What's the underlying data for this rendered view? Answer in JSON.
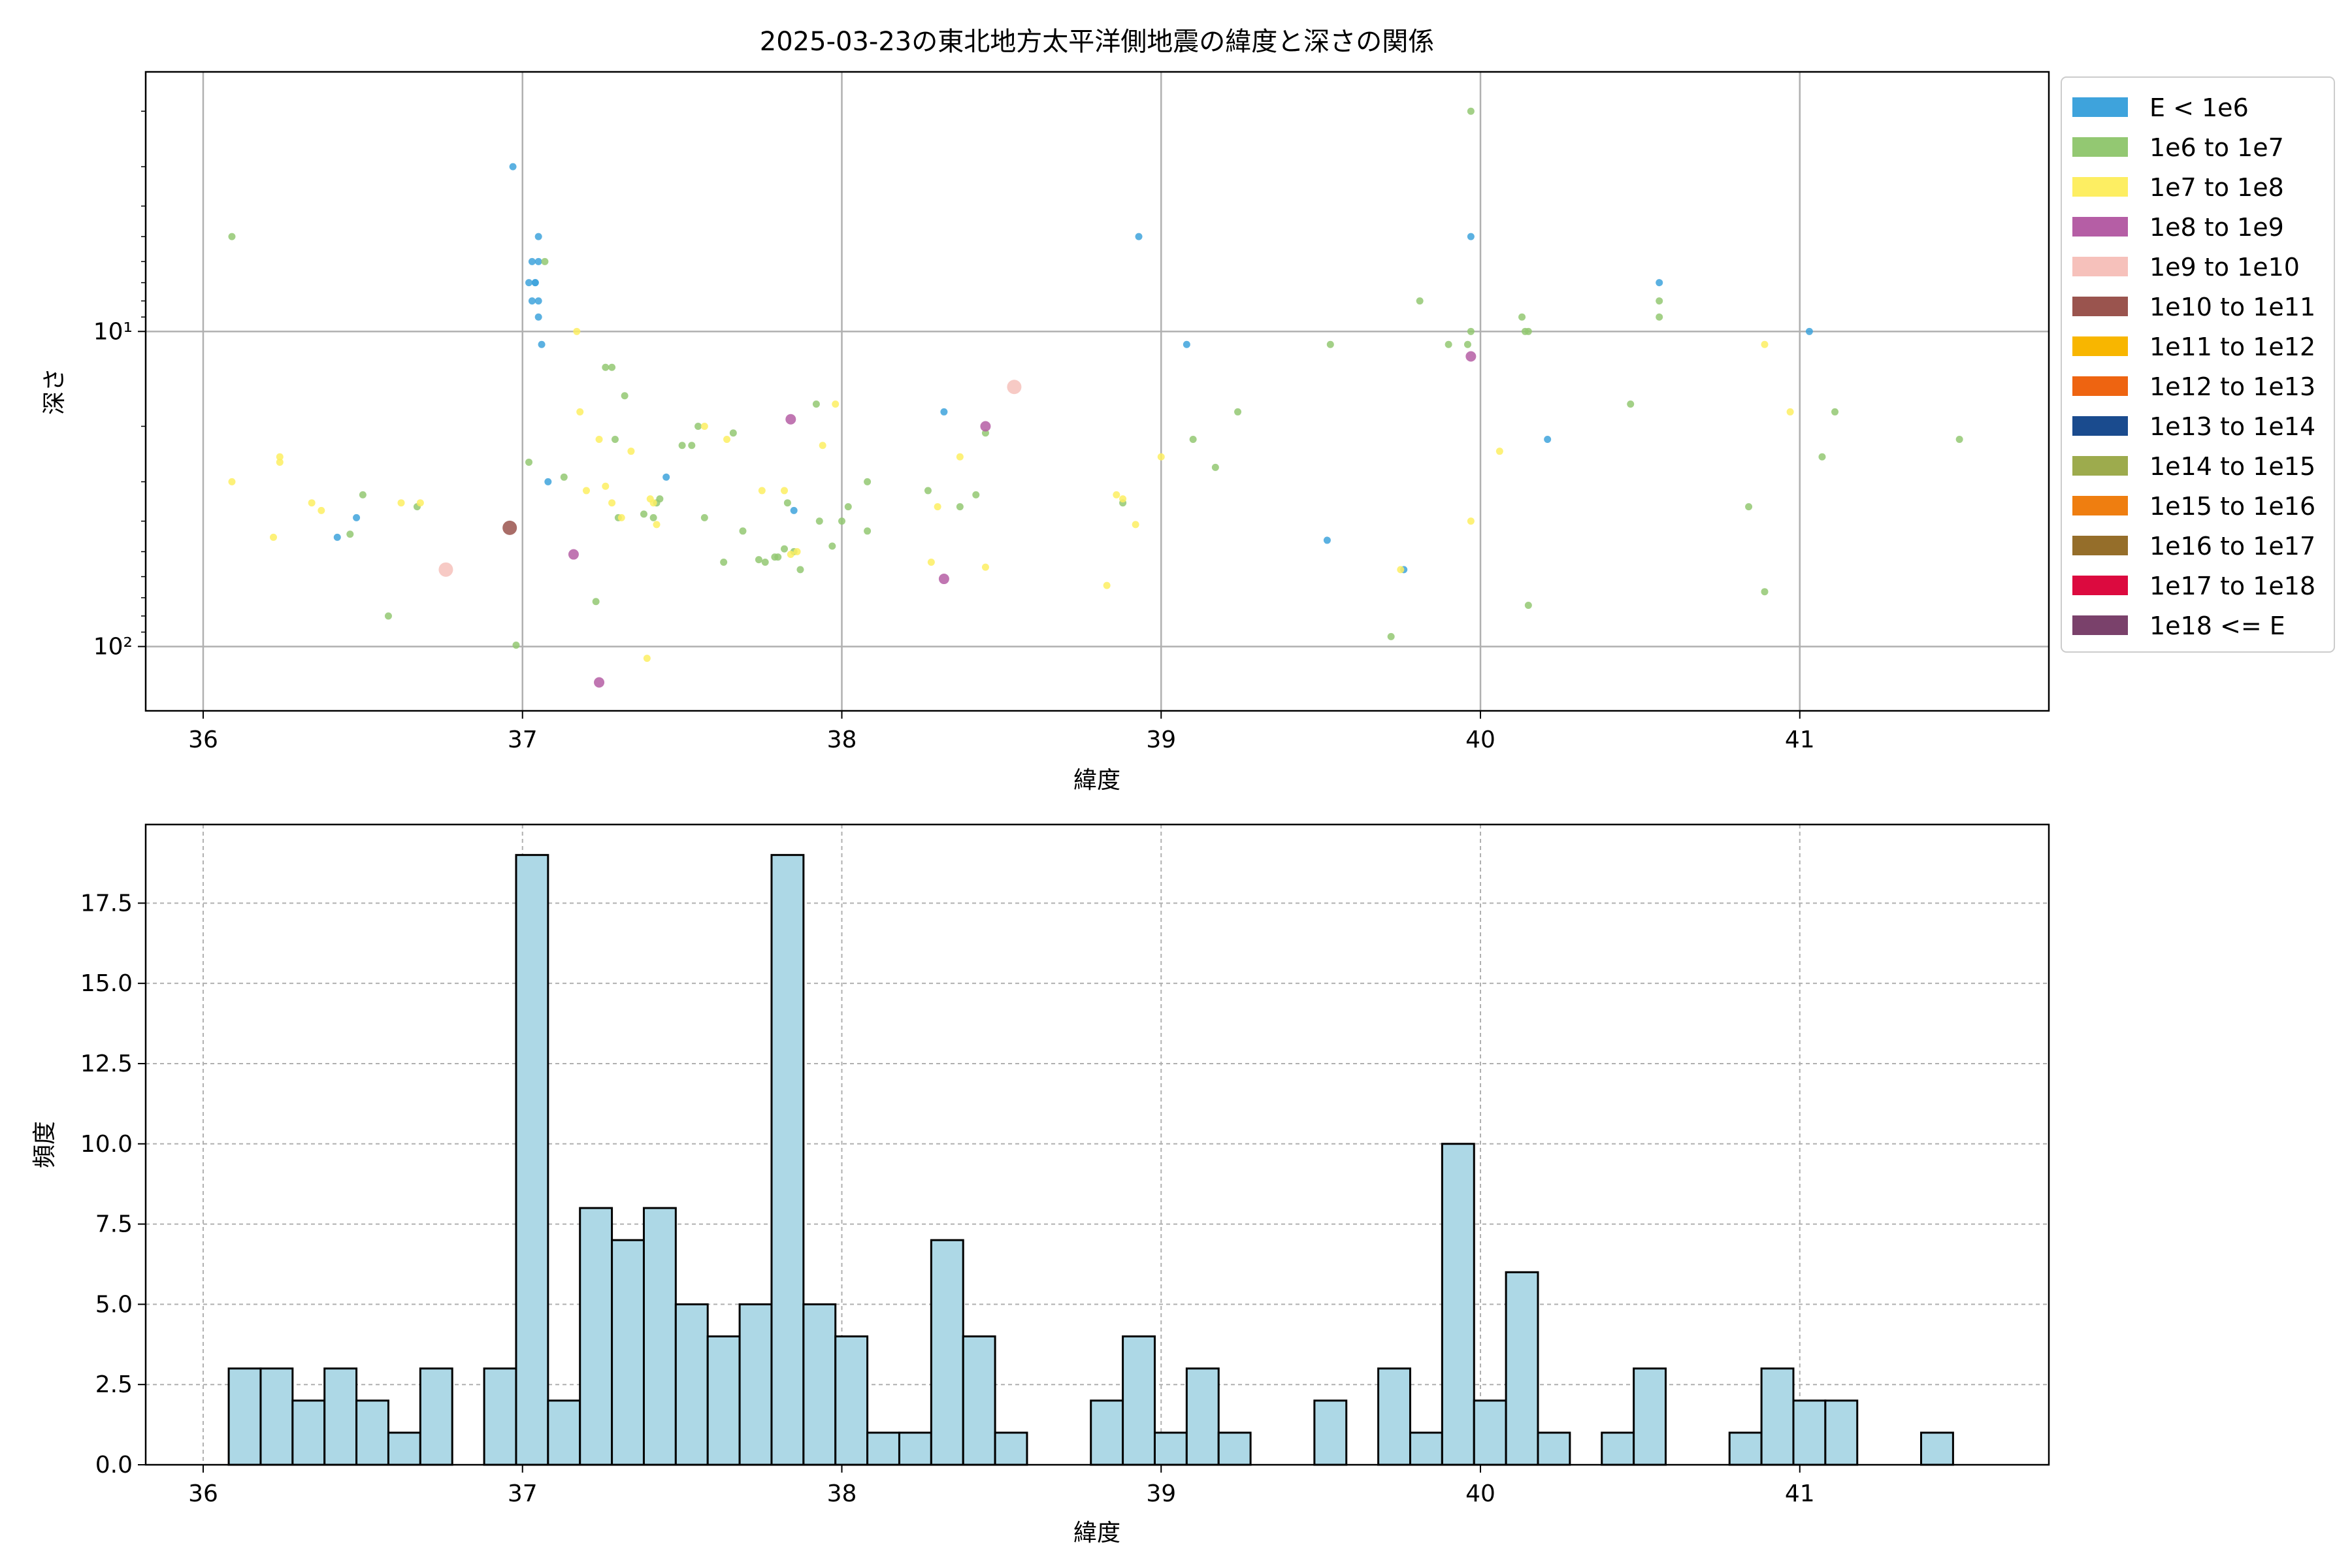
{
  "chart_data": [
    {
      "type": "scatter",
      "title": "2025-03-23の東北地方太平洋側地震の緯度と深さの関係",
      "xlabel": "緯度",
      "ylabel": "深さ",
      "xlim": [
        35.82,
        41.78
      ],
      "ylim": [
        160,
        1.5
      ],
      "yscale": "log",
      "y_inverted": true,
      "grid": true,
      "legend_placement": "outside right",
      "x_ticks": [
        36,
        37,
        38,
        39,
        40,
        41
      ],
      "x_tick_labels": [
        "36",
        "37",
        "38",
        "39",
        "40",
        "41"
      ],
      "y_ticks": [
        10,
        100
      ],
      "y_tick_labels": [
        "10¹",
        "10²"
      ],
      "legend": [
        {
          "label": "E < 1e6",
          "color": "#3ea3dc"
        },
        {
          "label": "1e6 to 1e7",
          "color": "#93c872"
        },
        {
          "label": "1e7 to 1e8",
          "color": "#fdee62"
        },
        {
          "label": "1e8 to 1e9",
          "color": "#b55ea5"
        },
        {
          "label": "1e9 to 1e10",
          "color": "#f6c1bb"
        },
        {
          "label": "1e10 to 1e11",
          "color": "#9a544e"
        },
        {
          "label": "1e11 to 1e12",
          "color": "#f8b600"
        },
        {
          "label": "1e12 to 1e13",
          "color": "#ee6411"
        },
        {
          "label": "1e13 to 1e14",
          "color": "#1a4b8e"
        },
        {
          "label": "1e14 to 1e15",
          "color": "#9dab4d"
        },
        {
          "label": "1e15 to 1e16",
          "color": "#ef7e10"
        },
        {
          "label": "1e16 to 1e17",
          "color": "#956e2a"
        },
        {
          "label": "1e17 to 1e18",
          "color": "#dc0a3f"
        },
        {
          "label": "1e18 <= E",
          "color": "#7a416b"
        }
      ],
      "series": [
        {
          "name": "E < 1e6",
          "color": "#3ea3dc",
          "points": [
            [
              36.97,
              3
            ],
            [
              37.05,
              5
            ],
            [
              37.03,
              6
            ],
            [
              37.05,
              6
            ],
            [
              37.02,
              7
            ],
            [
              37.04,
              7
            ],
            [
              37.04,
              7
            ],
            [
              37.03,
              8
            ],
            [
              37.05,
              8
            ],
            [
              37.05,
              9
            ],
            [
              37.06,
              11
            ],
            [
              37.08,
              30
            ],
            [
              37.45,
              29
            ],
            [
              37.85,
              37
            ],
            [
              38.32,
              18
            ],
            [
              38.93,
              5
            ],
            [
              39.08,
              11
            ],
            [
              39.52,
              46
            ],
            [
              39.76,
              57
            ],
            [
              39.97,
              5
            ],
            [
              40.21,
              22
            ],
            [
              40.56,
              7
            ],
            [
              41.03,
              10
            ],
            [
              36.48,
              39
            ],
            [
              36.42,
              45
            ]
          ]
        },
        {
          "name": "1e6 to 1e7",
          "color": "#93c872",
          "points": [
            [
              36.09,
              5
            ],
            [
              36.46,
              44
            ],
            [
              36.5,
              33
            ],
            [
              36.58,
              80
            ],
            [
              36.67,
              36
            ],
            [
              36.98,
              99
            ],
            [
              37.02,
              26
            ],
            [
              37.07,
              6
            ],
            [
              37.13,
              29
            ],
            [
              37.23,
              72
            ],
            [
              37.26,
              13
            ],
            [
              37.28,
              13
            ],
            [
              37.3,
              39
            ],
            [
              37.32,
              16
            ],
            [
              37.38,
              38
            ],
            [
              37.41,
              39
            ],
            [
              37.42,
              35
            ],
            [
              37.43,
              34
            ],
            [
              37.5,
              23
            ],
            [
              37.53,
              23
            ],
            [
              37.55,
              20
            ],
            [
              37.57,
              39
            ],
            [
              37.66,
              21
            ],
            [
              37.69,
              43
            ],
            [
              37.63,
              54
            ],
            [
              37.74,
              53
            ],
            [
              37.76,
              54
            ],
            [
              37.8,
              52
            ],
            [
              37.82,
              49
            ],
            [
              37.83,
              35
            ],
            [
              37.85,
              50
            ],
            [
              37.87,
              57
            ],
            [
              37.92,
              17
            ],
            [
              37.93,
              40
            ],
            [
              37.97,
              48
            ],
            [
              38.0,
              40
            ],
            [
              38.02,
              36
            ],
            [
              38.08,
              43
            ],
            [
              38.08,
              30
            ],
            [
              38.27,
              32
            ],
            [
              38.37,
              36
            ],
            [
              38.42,
              33
            ],
            [
              38.45,
              21
            ],
            [
              38.88,
              35
            ],
            [
              39.1,
              22
            ],
            [
              39.17,
              27
            ],
            [
              39.24,
              18
            ],
            [
              39.53,
              11
            ],
            [
              39.72,
              93
            ],
            [
              39.81,
              8
            ],
            [
              39.9,
              11
            ],
            [
              39.96,
              11
            ],
            [
              39.97,
              2
            ],
            [
              39.97,
              10
            ],
            [
              40.13,
              9
            ],
            [
              40.14,
              10
            ],
            [
              40.15,
              10
            ],
            [
              40.15,
              74
            ],
            [
              40.47,
              17
            ],
            [
              40.56,
              8
            ],
            [
              40.56,
              9
            ],
            [
              40.84,
              36
            ],
            [
              40.89,
              67
            ],
            [
              41.07,
              25
            ],
            [
              41.11,
              18
            ],
            [
              41.5,
              22
            ],
            [
              37.29,
              22
            ],
            [
              37.79,
              52
            ]
          ]
        },
        {
          "name": "1e7 to 1e8",
          "color": "#fdee62",
          "points": [
            [
              36.09,
              30
            ],
            [
              36.22,
              45
            ],
            [
              36.24,
              25
            ],
            [
              36.24,
              26
            ],
            [
              36.34,
              35
            ],
            [
              36.37,
              37
            ],
            [
              36.62,
              35
            ],
            [
              36.68,
              35
            ],
            [
              37.17,
              10
            ],
            [
              37.18,
              18
            ],
            [
              37.2,
              32
            ],
            [
              37.24,
              22
            ],
            [
              37.26,
              31
            ],
            [
              37.28,
              35
            ],
            [
              37.31,
              39
            ],
            [
              37.34,
              24
            ],
            [
              37.39,
              109
            ],
            [
              37.4,
              34
            ],
            [
              37.41,
              35
            ],
            [
              37.42,
              41
            ],
            [
              37.57,
              20
            ],
            [
              37.64,
              22
            ],
            [
              37.75,
              32
            ],
            [
              37.82,
              32
            ],
            [
              37.84,
              51
            ],
            [
              37.86,
              50
            ],
            [
              37.94,
              23
            ],
            [
              37.98,
              17
            ],
            [
              38.28,
              54
            ],
            [
              38.3,
              36
            ],
            [
              38.37,
              25
            ],
            [
              38.45,
              56
            ],
            [
              38.83,
              64
            ],
            [
              38.86,
              33
            ],
            [
              38.88,
              34
            ],
            [
              38.92,
              41
            ],
            [
              39.0,
              25
            ],
            [
              39.75,
              57
            ],
            [
              39.97,
              40
            ],
            [
              40.06,
              24
            ],
            [
              40.89,
              11
            ],
            [
              40.97,
              18
            ]
          ]
        },
        {
          "name": "1e8 to 1e9",
          "color": "#b55ea5",
          "points": [
            [
              37.16,
              51
            ],
            [
              37.24,
              130
            ],
            [
              37.84,
              19
            ],
            [
              38.32,
              61
            ],
            [
              38.45,
              20
            ],
            [
              39.97,
              12
            ]
          ]
        },
        {
          "name": "1e9 to 1e10",
          "color": "#f6c1bb",
          "points": [
            [
              36.76,
              57
            ],
            [
              38.54,
              15
            ]
          ]
        },
        {
          "name": "1e10 to 1e11",
          "color": "#9a544e",
          "points": [
            [
              36.96,
              42
            ]
          ]
        },
        {
          "name": "1e11 to 1e12",
          "color": "#f8b600",
          "points": []
        },
        {
          "name": "1e12 to 1e13",
          "color": "#ee6411",
          "points": []
        },
        {
          "name": "1e13 to 1e14",
          "color": "#1a4b8e",
          "points": []
        },
        {
          "name": "1e14 to 1e15",
          "color": "#9dab4d",
          "points": []
        },
        {
          "name": "1e15 to 1e16",
          "color": "#ef7e10",
          "points": []
        },
        {
          "name": "1e16 to 1e17",
          "color": "#956e2a",
          "points": []
        },
        {
          "name": "1e17 to 1e18",
          "color": "#dc0a3f",
          "points": []
        },
        {
          "name": "1e18 <= E",
          "color": "#7a416b",
          "points": []
        }
      ]
    },
    {
      "type": "histogram",
      "xlabel": "緯度",
      "ylabel": "頻度",
      "xlim": [
        35.82,
        41.78
      ],
      "ylim": [
        0,
        19.95
      ],
      "grid": true,
      "bar_color": "#add8e6",
      "edge_color": "#000000",
      "x_ticks": [
        36,
        37,
        38,
        39,
        40,
        41
      ],
      "x_tick_labels": [
        "36",
        "37",
        "38",
        "39",
        "40",
        "41"
      ],
      "y_ticks": [
        0,
        2.5,
        5,
        7.5,
        10,
        12.5,
        15,
        17.5
      ],
      "y_tick_labels": [
        "0.0",
        "2.5",
        "5.0",
        "7.5",
        "10.0",
        "12.5",
        "15.0",
        "17.5"
      ],
      "bin_start": 36.08,
      "bin_width": 0.1,
      "counts": [
        3,
        3,
        2,
        3,
        2,
        1,
        3,
        0,
        3,
        19,
        2,
        8,
        7,
        8,
        5,
        4,
        5,
        19,
        5,
        4,
        1,
        1,
        7,
        4,
        1,
        0,
        0,
        2,
        4,
        1,
        3,
        1,
        0,
        0,
        2,
        0,
        3,
        1,
        10,
        2,
        6,
        1,
        0,
        1,
        3,
        0,
        0,
        1,
        3,
        2,
        2,
        0,
        0,
        1
      ]
    }
  ]
}
